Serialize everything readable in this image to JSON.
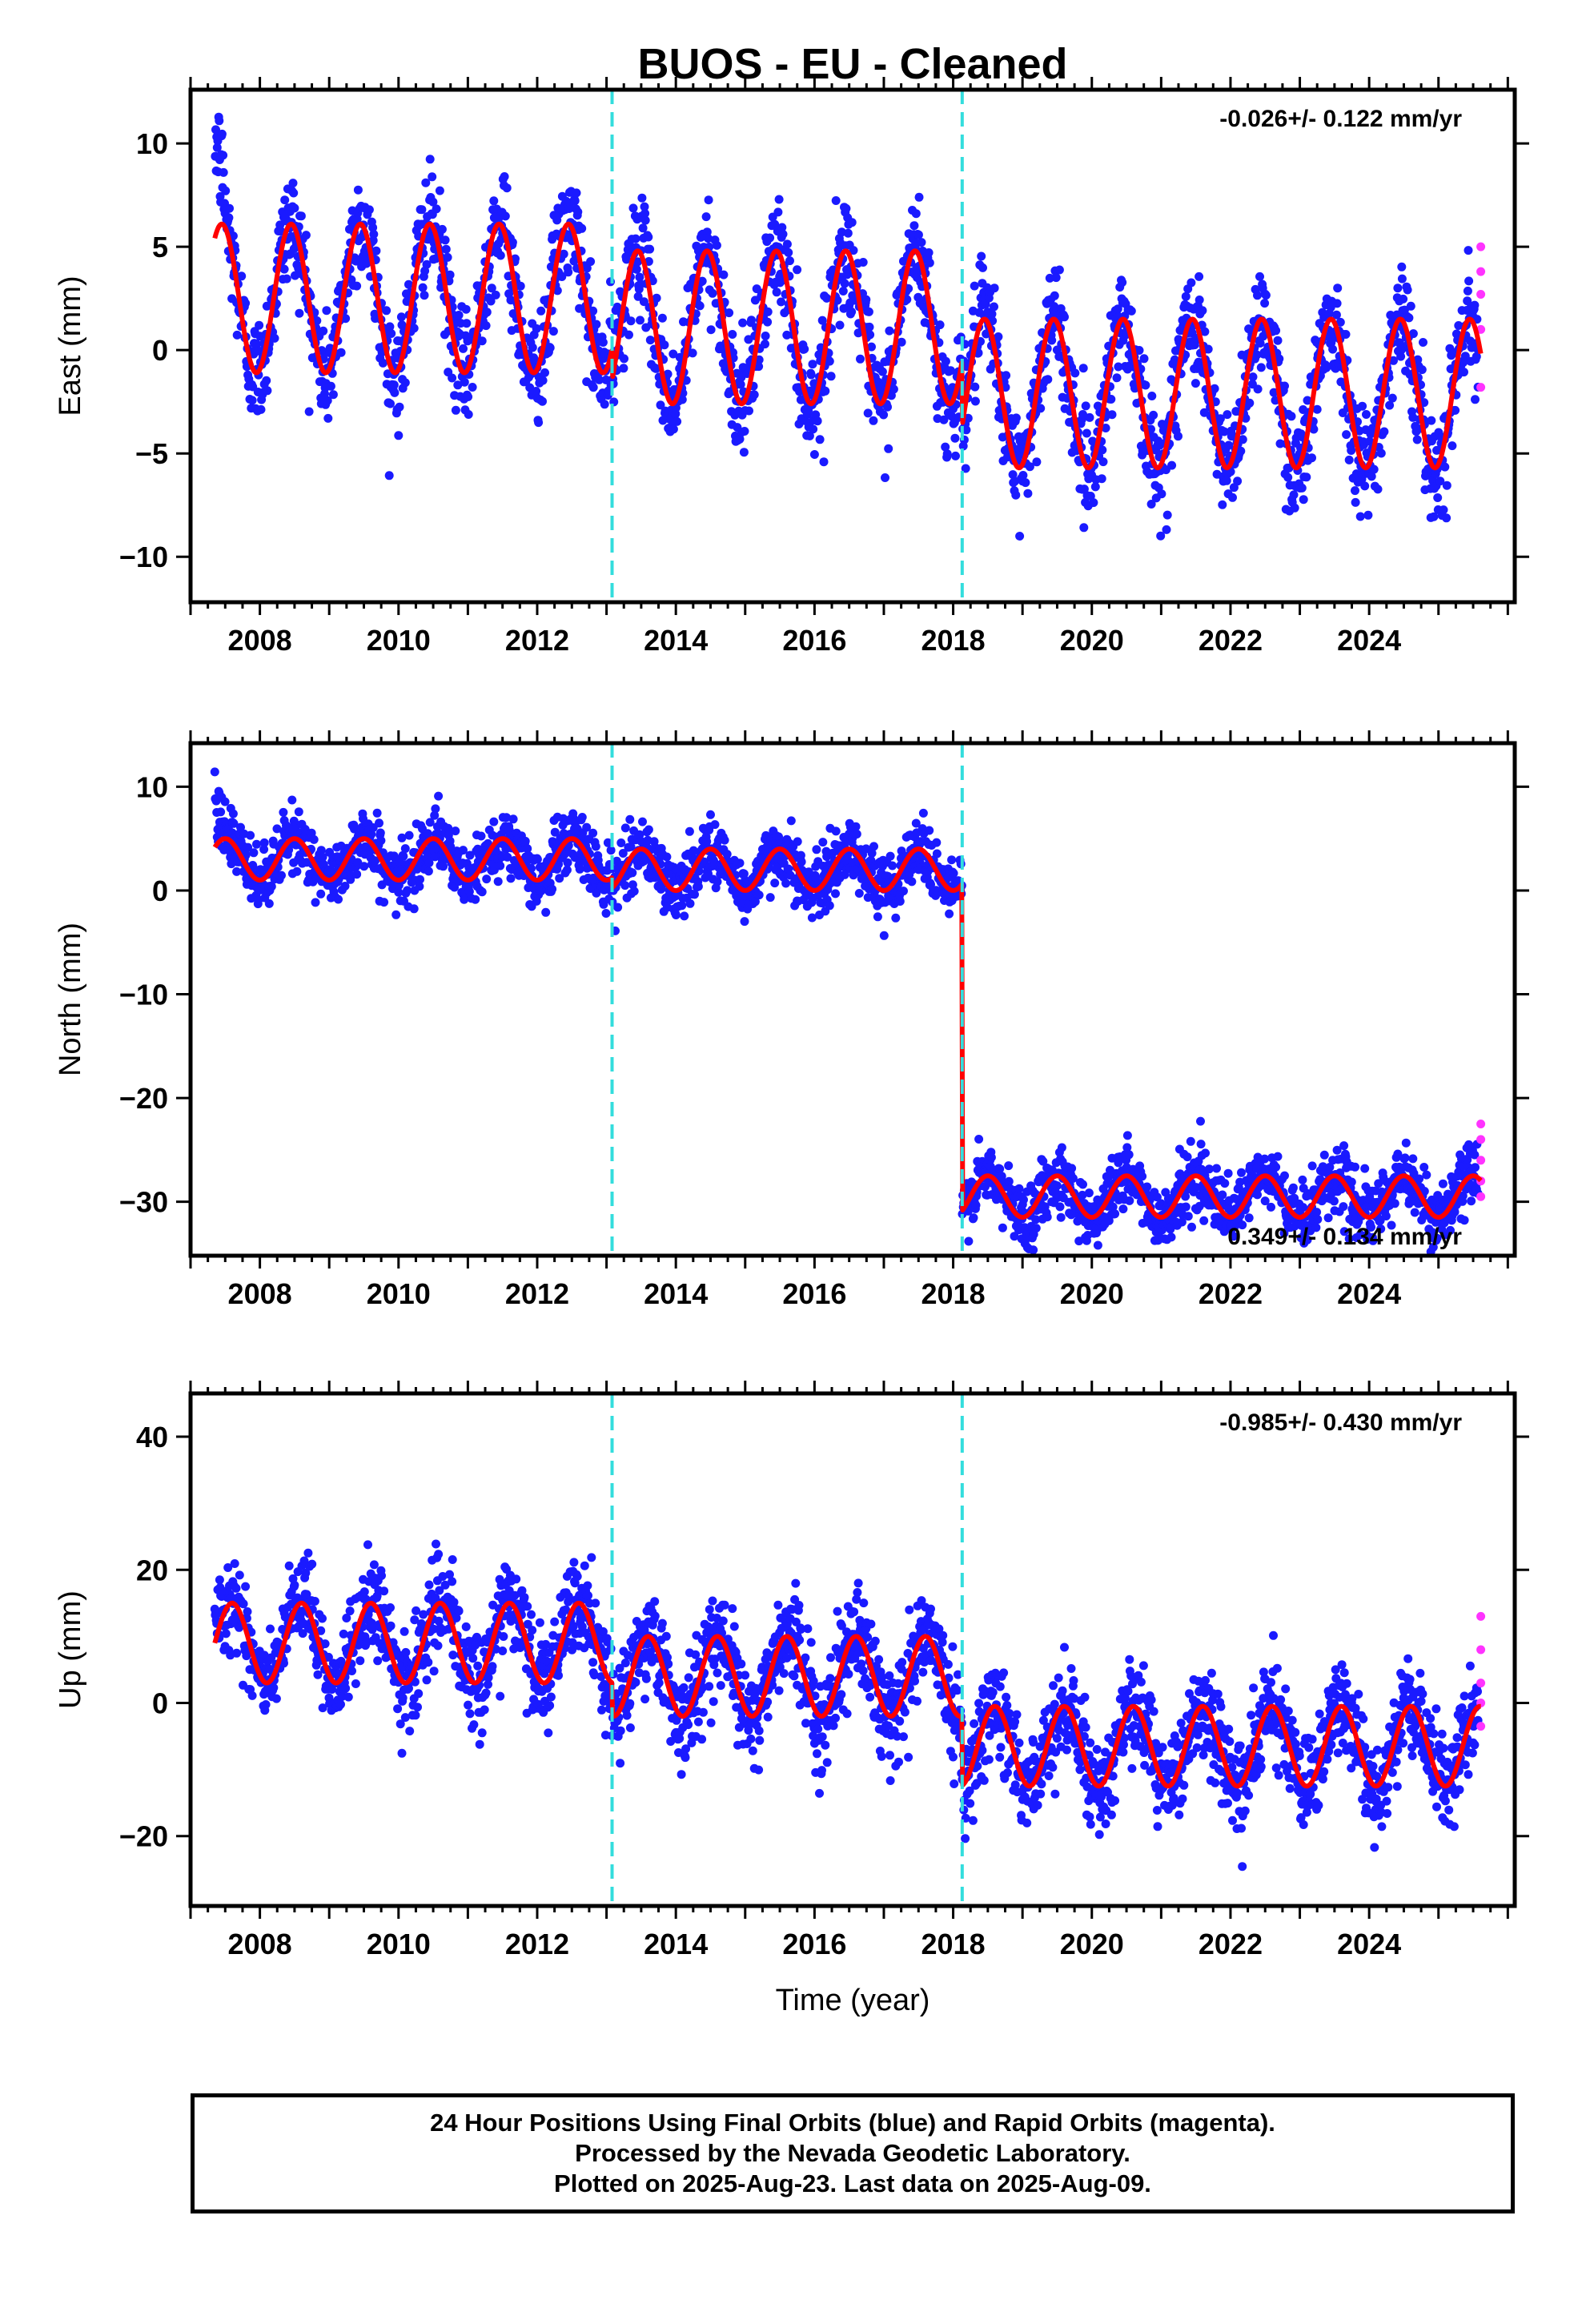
{
  "title": "BUOS  - EU - Cleaned",
  "colors": {
    "final_orbits": "#1a1aff",
    "rapid_orbits": "#ff33ff",
    "model_fit": "#ff0000",
    "offsets": "#33dddd",
    "frame": "#000000"
  },
  "chart_data": [
    {
      "type": "scatter",
      "component": "east",
      "ylabel": "East (mm)",
      "xlim": [
        2007.0,
        2026.1
      ],
      "ylim": [
        -12.2,
        12.6
      ],
      "xticks": [
        2008,
        2010,
        2012,
        2014,
        2016,
        2018,
        2020,
        2022,
        2024
      ],
      "yticks": [
        -10,
        -5,
        0,
        5,
        10
      ],
      "ytick_labels": [
        "−10",
        "−5",
        "0",
        "5",
        "10"
      ],
      "offsets": [
        2013.08,
        2018.13
      ],
      "rate_text": "-0.026+/- 0.122 mm/yr",
      "rate_placement": "top-right",
      "series_start": 2007.35,
      "series_end": 2025.61,
      "model": {
        "segments": [
          {
            "start": 2007.35,
            "end": 2013.08,
            "mean": 2.5,
            "amplitude": 3.6,
            "peak_phase": 0.45
          },
          {
            "start": 2013.08,
            "end": 2018.13,
            "mean": 1.1,
            "amplitude": 3.7,
            "peak_phase": 0.45
          },
          {
            "start": 2018.13,
            "end": 2025.61,
            "mean": -2.1,
            "amplitude": 3.6,
            "peak_phase": 0.45
          }
        ]
      },
      "scatter_sigma": 1.3,
      "rapid_values": [
        5.0,
        3.8,
        2.7,
        1.0,
        -1.8
      ]
    },
    {
      "type": "scatter",
      "component": "north",
      "ylabel": "North (mm)",
      "xlim": [
        2007.0,
        2026.1
      ],
      "ylim": [
        -35.2,
        14.2
      ],
      "xticks": [
        2008,
        2010,
        2012,
        2014,
        2016,
        2018,
        2020,
        2022,
        2024
      ],
      "yticks": [
        -30,
        -20,
        -10,
        0,
        10
      ],
      "ytick_labels": [
        "−30",
        "−20",
        "−10",
        "0",
        "10"
      ],
      "offsets": [
        2013.08,
        2018.13
      ],
      "rate_text": "0.349+/- 0.134 mm/yr",
      "rate_placement": "bottom-right",
      "series_start": 2007.35,
      "series_end": 2025.61,
      "model": {
        "segments": [
          {
            "start": 2007.35,
            "end": 2013.08,
            "mean": 3.0,
            "amplitude": 2.0,
            "peak_phase": 0.5
          },
          {
            "start": 2013.08,
            "end": 2018.13,
            "mean": 2.0,
            "amplitude": 2.0,
            "peak_phase": 0.5
          },
          {
            "start": 2018.13,
            "end": 2025.61,
            "mean": -29.5,
            "amplitude": 2.0,
            "peak_phase": 0.5
          }
        ]
      },
      "scatter_sigma": 1.5,
      "rapid_values": [
        -22.5,
        -24.0,
        -26.0,
        -28.0,
        -29.5
      ]
    },
    {
      "type": "scatter",
      "component": "up",
      "ylabel": "Up (mm)",
      "xlim": [
        2007.0,
        2026.1
      ],
      "ylim": [
        -30.5,
        46.5
      ],
      "xticks": [
        2008,
        2010,
        2012,
        2014,
        2016,
        2018,
        2020,
        2022,
        2024
      ],
      "yticks": [
        -20,
        0,
        20,
        40
      ],
      "ytick_labels": [
        "−20",
        "0",
        "20",
        "40"
      ],
      "offsets": [
        2013.08,
        2018.13
      ],
      "rate_text": "-0.985+/- 0.430 mm/yr",
      "rate_placement": "top-right",
      "xlabel": "Time (year)",
      "series_start": 2007.35,
      "series_end": 2025.61,
      "model": {
        "segments": [
          {
            "start": 2007.35,
            "end": 2013.08,
            "mean": 9.0,
            "amplitude": 6.0,
            "peak_phase": 0.6
          },
          {
            "start": 2013.08,
            "end": 2018.13,
            "mean": 4.0,
            "amplitude": 6.0,
            "peak_phase": 0.6
          },
          {
            "start": 2018.13,
            "end": 2025.61,
            "mean": -6.5,
            "amplitude": 6.0,
            "peak_phase": 0.6
          }
        ]
      },
      "scatter_sigma": 3.5,
      "rapid_values": [
        13.0,
        8.0,
        3.0,
        0.0,
        -3.5
      ]
    }
  ],
  "footer": {
    "line1": "24 Hour Positions Using Final Orbits (blue) and Rapid Orbits (magenta).",
    "line2": "Processed by the Nevada Geodetic Laboratory.",
    "line3": "Plotted on 2025-Aug-23. Last data on 2025-Aug-09."
  }
}
